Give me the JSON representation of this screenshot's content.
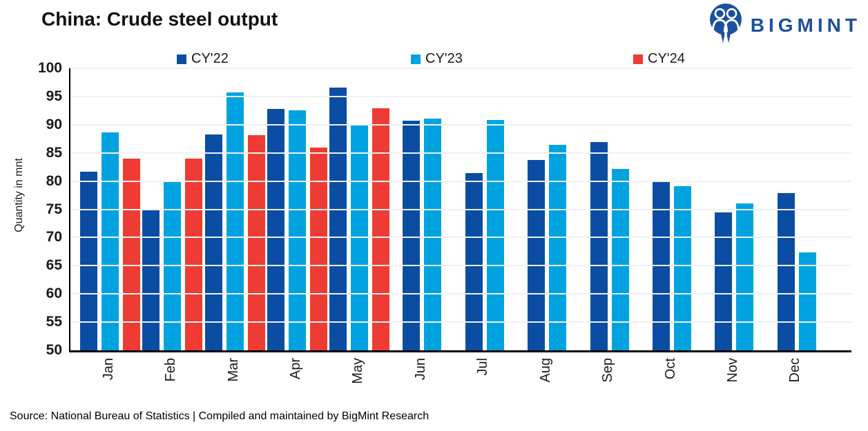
{
  "header": {
    "title": "China: Crude steel output",
    "logo_text": "BIGMINT"
  },
  "source_line": "Source: National Bureau of Statistics | Compiled and maintained by BigMint Research",
  "colors": {
    "cy22_dark_blue": "#0B4DA2",
    "cy23_light_blue": "#00A3E0",
    "cy24_red": "#EE3B33",
    "logo_blue": "#1D4FA0",
    "axis_black": "#000000",
    "gridline_gray": "#F1F1F1"
  },
  "chart_data": {
    "type": "bar",
    "title": "China: Crude steel output",
    "xlabel": "",
    "ylabel": "Quantity in mnt",
    "ylim": [
      50,
      100
    ],
    "yticks": [
      50,
      55,
      60,
      65,
      70,
      75,
      80,
      85,
      90,
      95,
      100
    ],
    "grid": true,
    "legend_position": "top",
    "categories": [
      "Jan",
      "Feb",
      "Mar",
      "Apr",
      "May",
      "Jun",
      "Jul",
      "Aug",
      "Sep",
      "Oct",
      "Nov",
      "Dec"
    ],
    "series": [
      {
        "name": "CY'22",
        "color": "#0B4DA2",
        "values": [
          81.7,
          75.0,
          88.3,
          92.8,
          96.6,
          90.7,
          81.4,
          83.8,
          86.9,
          79.8,
          74.5,
          77.9
        ]
      },
      {
        "name": "CY'23",
        "color": "#00A3E0",
        "values": [
          88.6,
          80.0,
          95.7,
          92.6,
          90.1,
          91.1,
          90.8,
          86.4,
          82.1,
          79.1,
          76.1,
          67.4
        ]
      },
      {
        "name": "CY'24",
        "color": "#EE3B33",
        "values": [
          84.0,
          84.0,
          88.2,
          85.9,
          92.9,
          null,
          null,
          null,
          null,
          null,
          null,
          null
        ]
      }
    ]
  }
}
